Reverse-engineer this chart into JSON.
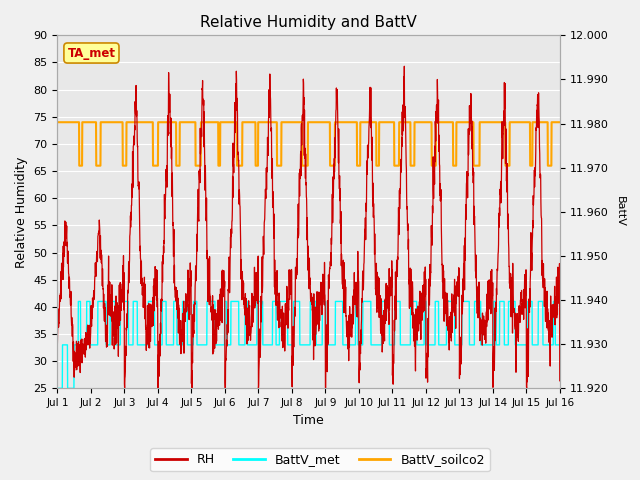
{
  "title": "Relative Humidity and BattV",
  "xlabel": "Time",
  "ylabel_left": "Relative Humidity",
  "ylabel_right": "BattV",
  "annotation": "TA_met",
  "ylim_left": [
    25,
    90
  ],
  "ylim_right": [
    11.92,
    12.0
  ],
  "yticks_left": [
    25,
    30,
    35,
    40,
    45,
    50,
    55,
    60,
    65,
    70,
    75,
    80,
    85,
    90
  ],
  "yticks_right": [
    11.92,
    11.93,
    11.94,
    11.95,
    11.96,
    11.97,
    11.98,
    11.99,
    12.0
  ],
  "xtick_labels": [
    "Jul 1",
    "Jul 2",
    "Jul 3",
    "Jul 4",
    "Jul 5",
    "Jul 6",
    "Jul 7",
    "Jul 8",
    "Jul 9",
    "Jul 10",
    "Jul 11",
    "Jul 12",
    "Jul 13",
    "Jul 14",
    "Jul 15",
    "Jul 16"
  ],
  "color_RH": "#cc0000",
  "color_BattV_met": "#00ffff",
  "color_BattV_soilco2": "#ffa500",
  "plot_bg": "#e8e8e8",
  "fig_bg": "#f0f0f0",
  "grid_color": "#ffffff",
  "num_days": 15,
  "seed": 42,
  "figsize": [
    6.4,
    4.8
  ],
  "dpi": 100
}
